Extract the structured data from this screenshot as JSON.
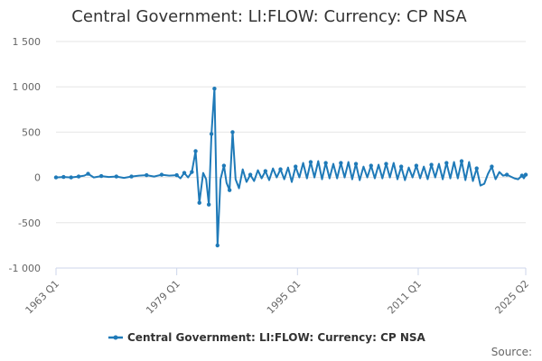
{
  "chart_data": {
    "type": "line",
    "title": "Central Government: LI:FLOW: Currency: CP NSA",
    "xlabel": "",
    "ylabel": "",
    "ylim": [
      -1000,
      1500
    ],
    "yticks": [
      1500,
      1000,
      500,
      0,
      -500,
      -1000
    ],
    "ytick_labels": [
      "1 500",
      "1 000",
      "500",
      "0",
      "-500",
      "-1 000"
    ],
    "xlim": [
      1963.0,
      2025.25
    ],
    "xticks": [
      1963.0,
      1979.0,
      1995.0,
      2011.0,
      2025.25
    ],
    "xtick_labels": [
      "1963 Q1",
      "1979 Q1",
      "1995 Q1",
      "2011 Q1",
      "2025 Q2"
    ],
    "grid": true,
    "legend_position": "bottom-center",
    "series": [
      {
        "name": "Central Government: LI:FLOW: Currency: CP NSA",
        "color": "#1f7ab8",
        "x": [
          1963.0,
          1964.0,
          1965.0,
          1966.0,
          1966.75,
          1967.25,
          1968.0,
          1969.0,
          1970.0,
          1971.0,
          1972.0,
          1973.0,
          1974.0,
          1975.0,
          1976.0,
          1977.0,
          1978.0,
          1979.0,
          1979.5,
          1980.0,
          1980.5,
          1981.0,
          1981.5,
          1982.0,
          1982.5,
          1982.9,
          1983.25,
          1983.6,
          1984.0,
          1984.4,
          1984.8,
          1985.25,
          1985.6,
          1986.0,
          1986.4,
          1986.8,
          1987.25,
          1987.75,
          1988.25,
          1988.75,
          1989.25,
          1989.75,
          1990.25,
          1990.75,
          1991.25,
          1991.75,
          1992.25,
          1992.75,
          1993.25,
          1993.75,
          1994.25,
          1994.75,
          1995.25,
          1995.75,
          1996.25,
          1996.75,
          1997.25,
          1997.75,
          1998.25,
          1998.75,
          1999.25,
          1999.75,
          2000.25,
          2000.75,
          2001.25,
          2001.75,
          2002.25,
          2002.75,
          2003.25,
          2003.75,
          2004.25,
          2004.75,
          2005.25,
          2005.75,
          2006.25,
          2006.75,
          2007.25,
          2007.75,
          2008.25,
          2008.75,
          2009.25,
          2009.75,
          2010.25,
          2010.75,
          2011.25,
          2011.75,
          2012.25,
          2012.75,
          2013.25,
          2013.75,
          2014.25,
          2014.75,
          2015.25,
          2015.75,
          2016.25,
          2016.75,
          2017.25,
          2017.75,
          2018.25,
          2018.75,
          2019.25,
          2019.75,
          2020.25,
          2020.75,
          2021.25,
          2021.75,
          2022.25,
          2022.75,
          2023.25,
          2023.75,
          2024.25,
          2024.75,
          2025.0,
          2025.25
        ],
        "values": [
          0,
          5,
          0,
          10,
          20,
          40,
          0,
          15,
          5,
          10,
          -5,
          10,
          20,
          25,
          10,
          30,
          20,
          25,
          -10,
          50,
          0,
          60,
          290,
          -280,
          50,
          -20,
          -300,
          480,
          980,
          -750,
          -20,
          130,
          -60,
          -140,
          500,
          -20,
          -120,
          90,
          -50,
          30,
          -40,
          80,
          -10,
          70,
          -30,
          100,
          0,
          90,
          -20,
          110,
          -50,
          120,
          0,
          160,
          -10,
          170,
          0,
          180,
          -20,
          160,
          -10,
          150,
          -10,
          160,
          0,
          170,
          -20,
          150,
          -30,
          120,
          0,
          130,
          -10,
          140,
          -10,
          150,
          0,
          160,
          -20,
          120,
          -30,
          110,
          0,
          130,
          -10,
          120,
          -20,
          140,
          0,
          150,
          -20,
          160,
          -10,
          170,
          -10,
          180,
          -30,
          170,
          -40,
          100,
          -90,
          -70,
          40,
          120,
          -20,
          60,
          20,
          30,
          10,
          -10,
          -20,
          20,
          -10,
          30
        ],
        "marker_x": [
          1963.0,
          1964.0,
          1965.0,
          1966.0,
          1967.25,
          1969.0,
          1971.0,
          1973.0,
          1975.0,
          1977.0,
          1979.0,
          1980.0,
          1981.0,
          1981.5,
          1982.0,
          1983.25,
          1983.6,
          1984.0,
          1984.4,
          1985.25,
          1986.0,
          1986.4,
          1988.75,
          1990.75,
          1992.75,
          1994.75,
          1996.75,
          1998.75,
          2000.75,
          2002.75,
          2004.75,
          2006.75,
          2008.75,
          2010.75,
          2012.75,
          2014.75,
          2016.75,
          2018.75,
          2020.75,
          2022.75,
          2024.75,
          2025.25
        ]
      }
    ]
  },
  "source_label": "Source:"
}
